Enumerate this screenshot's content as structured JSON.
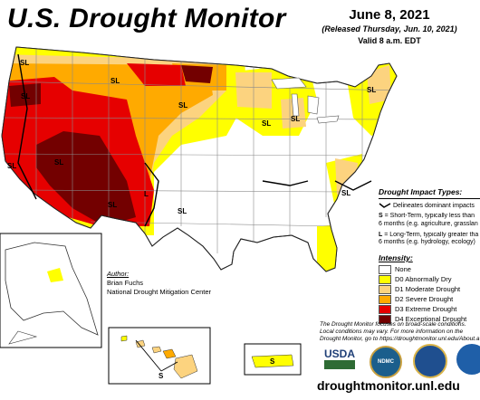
{
  "title": "U.S. Drought Monitor",
  "date": {
    "main": "June 8, 2021",
    "released": "(Released Thursday, Jun. 10, 2021)",
    "valid": "Valid 8 a.m. EDT"
  },
  "impact": {
    "header": "Drought Impact Types:",
    "delineates": "Delineates dominant impacts",
    "short_term_code": "S",
    "short_term_line1": " = Short-Term, typically less than",
    "short_term_line2": "6 months (e.g. agriculture, grasslan",
    "long_term_code": "L",
    "long_term_line1": " = Long-Term, typically greater tha",
    "long_term_line2": "6 months (e.g. hydrology, ecology)"
  },
  "intensity": {
    "header": "Intensity:",
    "items": [
      {
        "label": "None",
        "color": "#ffffff"
      },
      {
        "label": "D0 Abnormally Dry",
        "color": "#ffff00"
      },
      {
        "label": "D1 Moderate Drought",
        "color": "#fcd37f"
      },
      {
        "label": "D2 Severe Drought",
        "color": "#ffaa00"
      },
      {
        "label": "D3 Extreme Drought",
        "color": "#e60000"
      },
      {
        "label": "D4 Exceptional Drought",
        "color": "#730000"
      }
    ]
  },
  "author": {
    "header": "Author:",
    "name": "Brian Fuchs",
    "org": "National Drought Mitigation Center"
  },
  "note": {
    "line1": "The Drought Monitor focuses on broad-scale conditions.",
    "line2": "Local conditions may vary. For more information on the",
    "line3": "Drought Monitor, go to https://droughtmonitor.unl.edu/About.a"
  },
  "logos": {
    "usda": "USDA",
    "ndmc": "NDMC"
  },
  "url": "droughtmonitor.unl.edu",
  "map_labels": {
    "sl": "SL",
    "s": "S",
    "l": "L"
  },
  "colors": {
    "none": "#ffffff",
    "d0": "#ffff00",
    "d1": "#fcd37f",
    "d2": "#ffaa00",
    "d3": "#e60000",
    "d4": "#730000",
    "state_line": "#8a8a8a"
  }
}
